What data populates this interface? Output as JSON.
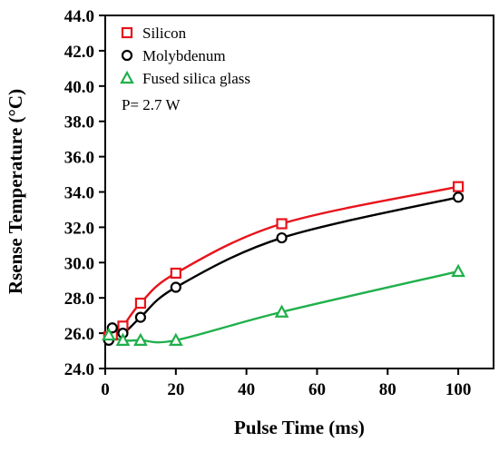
{
  "chart_data": {
    "type": "line",
    "xlabel": "Pulse Time (ms)",
    "ylabel": "Rsense Temperature (°C)",
    "xlim": [
      0,
      110
    ],
    "ylim": [
      24.0,
      44.0
    ],
    "x_ticks": [
      0,
      20,
      40,
      60,
      80,
      100
    ],
    "y_ticks": [
      24.0,
      26.0,
      28.0,
      30.0,
      32.0,
      34.0,
      36.0,
      38.0,
      40.0,
      42.0,
      44.0
    ],
    "x_tick_labels": [
      "0",
      "20",
      "40",
      "60",
      "80",
      "100"
    ],
    "y_tick_labels": [
      "24.0",
      "26.0",
      "28.0",
      "30.0",
      "32.0",
      "34.0",
      "36.0",
      "38.0",
      "40.0",
      "42.0",
      "44.0"
    ],
    "grid": false,
    "legend_position": "top-left",
    "annotation": "P= 2.7 W",
    "series": [
      {
        "name": "Silicon",
        "marker": "square",
        "color": "#e8131b",
        "x": [
          1,
          2,
          5,
          10,
          20,
          50,
          100
        ],
        "y": [
          25.8,
          25.9,
          26.4,
          27.7,
          29.4,
          32.2,
          34.3
        ]
      },
      {
        "name": "Molybdenum",
        "marker": "circle",
        "color": "#000000",
        "x": [
          1,
          2,
          5,
          10,
          20,
          50,
          100
        ],
        "y": [
          25.6,
          26.3,
          26.0,
          26.9,
          28.6,
          31.4,
          33.7
        ]
      },
      {
        "name": "Fused silica glass",
        "marker": "triangle",
        "color": "#1fb04b",
        "x": [
          1,
          5,
          10,
          20,
          50,
          100
        ],
        "y": [
          25.9,
          25.6,
          25.6,
          25.6,
          27.2,
          29.5
        ]
      }
    ]
  }
}
